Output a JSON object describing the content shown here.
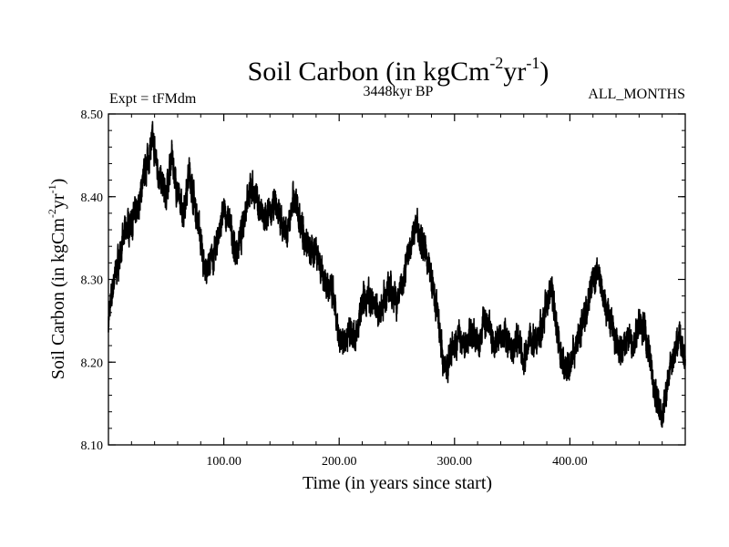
{
  "chart_data": {
    "type": "line",
    "title": {
      "main": "Soil Carbon (in kgCm",
      "sup1": "-2",
      "mid": "yr",
      "sup2": "-1",
      "close": ")"
    },
    "subtitle_left": "Expt = tFMdm",
    "subtitle_center": "3448kyr BP",
    "subtitle_right": "ALL_MONTHS",
    "xlabel": "Time (in years since start)",
    "ylabel": {
      "main": "Soil Carbon (in kgCm",
      "sup1": "-2",
      "mid": "yr",
      "sup2": "-1",
      "close": ")"
    },
    "xlim": [
      0,
      500
    ],
    "ylim": [
      8.1,
      8.5
    ],
    "xticks": [
      100,
      200,
      300,
      400
    ],
    "xtick_labels": [
      "100.00",
      "200.00",
      "300.00",
      "400.00"
    ],
    "yticks": [
      8.1,
      8.2,
      8.3,
      8.4,
      8.5
    ],
    "ytick_labels": [
      "8.10",
      "8.20",
      "8.30",
      "8.40",
      "8.50"
    ],
    "series": [
      {
        "name": "Soil Carbon",
        "color": "#000000",
        "x": [
          0,
          5,
          10,
          15,
          20,
          25,
          30,
          35,
          38,
          42,
          45,
          50,
          55,
          60,
          65,
          70,
          75,
          80,
          83,
          88,
          92,
          96,
          100,
          105,
          110,
          115,
          120,
          125,
          130,
          135,
          140,
          145,
          150,
          155,
          160,
          165,
          170,
          175,
          180,
          185,
          190,
          195,
          200,
          205,
          210,
          215,
          220,
          225,
          230,
          235,
          240,
          245,
          250,
          255,
          260,
          265,
          268,
          272,
          276,
          280,
          285,
          290,
          293,
          296,
          300,
          305,
          310,
          315,
          320,
          325,
          330,
          335,
          340,
          345,
          350,
          355,
          360,
          365,
          370,
          375,
          380,
          384,
          388,
          392,
          396,
          400,
          405,
          410,
          415,
          420,
          425,
          430,
          435,
          440,
          445,
          450,
          455,
          460,
          465,
          470,
          473,
          476,
          480,
          485,
          490,
          495,
          500
        ],
        "values": [
          8.25,
          8.3,
          8.33,
          8.36,
          8.37,
          8.38,
          8.42,
          8.45,
          8.47,
          8.44,
          8.42,
          8.4,
          8.45,
          8.4,
          8.38,
          8.43,
          8.39,
          8.35,
          8.31,
          8.32,
          8.33,
          8.36,
          8.38,
          8.37,
          8.33,
          8.35,
          8.4,
          8.41,
          8.39,
          8.37,
          8.38,
          8.39,
          8.37,
          8.35,
          8.4,
          8.38,
          8.35,
          8.33,
          8.34,
          8.31,
          8.29,
          8.28,
          8.22,
          8.23,
          8.24,
          8.23,
          8.27,
          8.28,
          8.27,
          8.26,
          8.28,
          8.29,
          8.27,
          8.3,
          8.33,
          8.36,
          8.37,
          8.34,
          8.33,
          8.3,
          8.26,
          8.2,
          8.19,
          8.21,
          8.22,
          8.23,
          8.22,
          8.24,
          8.22,
          8.25,
          8.24,
          8.22,
          8.24,
          8.23,
          8.21,
          8.23,
          8.2,
          8.23,
          8.22,
          8.24,
          8.27,
          8.29,
          8.25,
          8.21,
          8.19,
          8.2,
          8.22,
          8.24,
          8.27,
          8.3,
          8.31,
          8.27,
          8.25,
          8.22,
          8.21,
          8.23,
          8.22,
          8.25,
          8.24,
          8.2,
          8.17,
          8.15,
          8.13,
          8.18,
          8.21,
          8.23,
          8.2
        ]
      }
    ]
  }
}
